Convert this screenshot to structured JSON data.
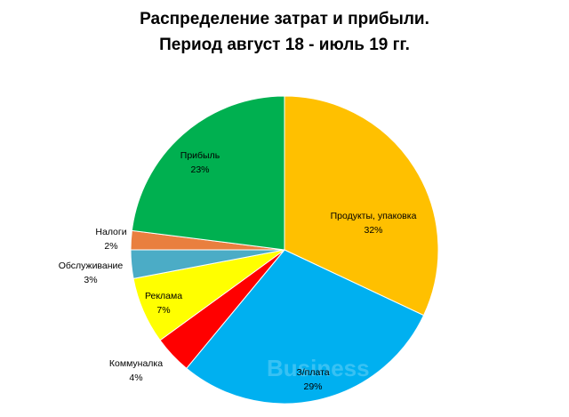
{
  "title": {
    "line1": "Распределение затрат и прибыли.",
    "line2": "Период август 18 - июль 19 гг."
  },
  "watermark_text": "Business",
  "chart_data": {
    "type": "pie",
    "title": "Распределение затрат и прибыли. Период август 18 - июль 19 гг.",
    "start": "12 o'clock",
    "direction": "clockwise",
    "slices": [
      {
        "label": "Продукты, упаковка",
        "value": 32,
        "value_label": "32%",
        "color": "#FFC000"
      },
      {
        "label": "З/плата",
        "value": 29,
        "value_label": "29%",
        "color": "#00B0F0"
      },
      {
        "label": "Коммуналка",
        "value": 4,
        "value_label": "4%",
        "color": "#FF0000"
      },
      {
        "label": "Реклама",
        "value": 7,
        "value_label": "7%",
        "color": "#FFFF00"
      },
      {
        "label": "Обслуживание",
        "value": 3,
        "value_label": "3%",
        "color": "#4BACC6"
      },
      {
        "label": "Налоги",
        "value": 2,
        "value_label": "2%",
        "color": "#E97F3F"
      },
      {
        "label": "Прибыль",
        "value": 23,
        "value_label": "23%",
        "color": "#00B050"
      }
    ]
  }
}
